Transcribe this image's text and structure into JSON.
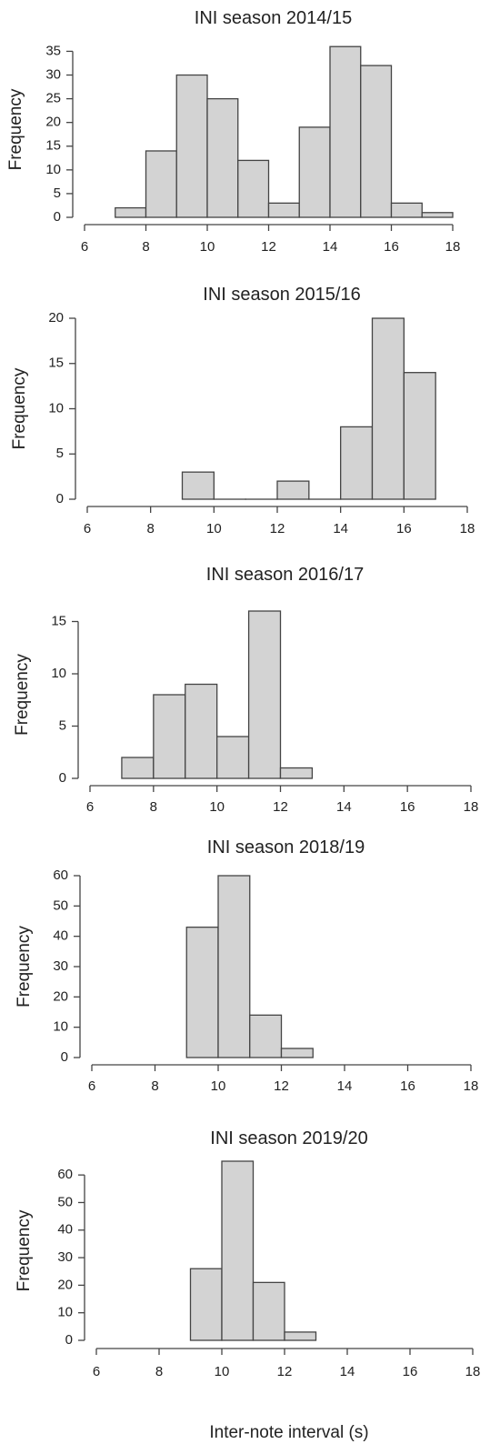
{
  "chart_data": [
    {
      "type": "bar",
      "title": "INI season 2014/15",
      "ylabel": "Frequency",
      "xlabel": "",
      "xlim": [
        6,
        18
      ],
      "xticks": [
        6,
        8,
        10,
        12,
        14,
        16,
        18
      ],
      "yticks": [
        0,
        5,
        10,
        15,
        20,
        25,
        30,
        35
      ],
      "ylim": [
        0,
        37
      ],
      "bins": [
        {
          "x0": 7,
          "x1": 8,
          "count": 2
        },
        {
          "x0": 8,
          "x1": 9,
          "count": 14
        },
        {
          "x0": 9,
          "x1": 10,
          "count": 30
        },
        {
          "x0": 10,
          "x1": 11,
          "count": 25
        },
        {
          "x0": 11,
          "x1": 12,
          "count": 12
        },
        {
          "x0": 12,
          "x1": 13,
          "count": 3
        },
        {
          "x0": 13,
          "x1": 14,
          "count": 19
        },
        {
          "x0": 14,
          "x1": 15,
          "count": 36
        },
        {
          "x0": 15,
          "x1": 16,
          "count": 32
        },
        {
          "x0": 16,
          "x1": 17,
          "count": 3
        },
        {
          "x0": 17,
          "x1": 18,
          "count": 1
        }
      ]
    },
    {
      "type": "bar",
      "title": "INI season 2015/16",
      "ylabel": "Frequency",
      "xlabel": "",
      "xlim": [
        6,
        18
      ],
      "xticks": [
        6,
        8,
        10,
        12,
        14,
        16,
        18
      ],
      "yticks": [
        0,
        5,
        10,
        15,
        20
      ],
      "ylim": [
        0,
        20
      ],
      "bins": [
        {
          "x0": 9,
          "x1": 10,
          "count": 3
        },
        {
          "x0": 10,
          "x1": 11,
          "count": 0
        },
        {
          "x0": 11,
          "x1": 12,
          "count": 0
        },
        {
          "x0": 12,
          "x1": 13,
          "count": 2
        },
        {
          "x0": 13,
          "x1": 14,
          "count": 0
        },
        {
          "x0": 14,
          "x1": 15,
          "count": 8
        },
        {
          "x0": 15,
          "x1": 16,
          "count": 20
        },
        {
          "x0": 16,
          "x1": 17,
          "count": 14
        }
      ]
    },
    {
      "type": "bar",
      "title": "INI season 2016/17",
      "ylabel": "Frequency",
      "xlabel": "",
      "xlim": [
        6,
        18
      ],
      "xticks": [
        6,
        8,
        10,
        12,
        14,
        16,
        18
      ],
      "yticks": [
        0,
        5,
        10,
        15
      ],
      "ylim": [
        0,
        16
      ],
      "bins": [
        {
          "x0": 7,
          "x1": 8,
          "count": 2
        },
        {
          "x0": 8,
          "x1": 9,
          "count": 8
        },
        {
          "x0": 9,
          "x1": 10,
          "count": 9
        },
        {
          "x0": 10,
          "x1": 11,
          "count": 4
        },
        {
          "x0": 11,
          "x1": 12,
          "count": 16
        },
        {
          "x0": 12,
          "x1": 13,
          "count": 1
        }
      ]
    },
    {
      "type": "bar",
      "title": "INI season 2018/19",
      "ylabel": "Frequency",
      "xlabel": "",
      "xlim": [
        6,
        18
      ],
      "xticks": [
        6,
        8,
        10,
        12,
        14,
        16,
        18
      ],
      "yticks": [
        0,
        10,
        20,
        30,
        40,
        50,
        60
      ],
      "ylim": [
        0,
        60
      ],
      "bins": [
        {
          "x0": 9,
          "x1": 10,
          "count": 43
        },
        {
          "x0": 10,
          "x1": 11,
          "count": 60
        },
        {
          "x0": 11,
          "x1": 12,
          "count": 14
        },
        {
          "x0": 12,
          "x1": 13,
          "count": 3
        }
      ]
    },
    {
      "type": "bar",
      "title": "INI season 2019/20",
      "ylabel": "Frequency",
      "xlabel": "Inter-note interval (s)",
      "xlim": [
        6,
        18
      ],
      "xticks": [
        6,
        8,
        10,
        12,
        14,
        16,
        18
      ],
      "yticks": [
        0,
        10,
        20,
        30,
        40,
        50,
        60
      ],
      "ylim": [
        0,
        65
      ],
      "bins": [
        {
          "x0": 9,
          "x1": 10,
          "count": 26
        },
        {
          "x0": 10,
          "x1": 11,
          "count": 65
        },
        {
          "x0": 11,
          "x1": 12,
          "count": 21
        },
        {
          "x0": 12,
          "x1": 13,
          "count": 3
        }
      ]
    }
  ]
}
